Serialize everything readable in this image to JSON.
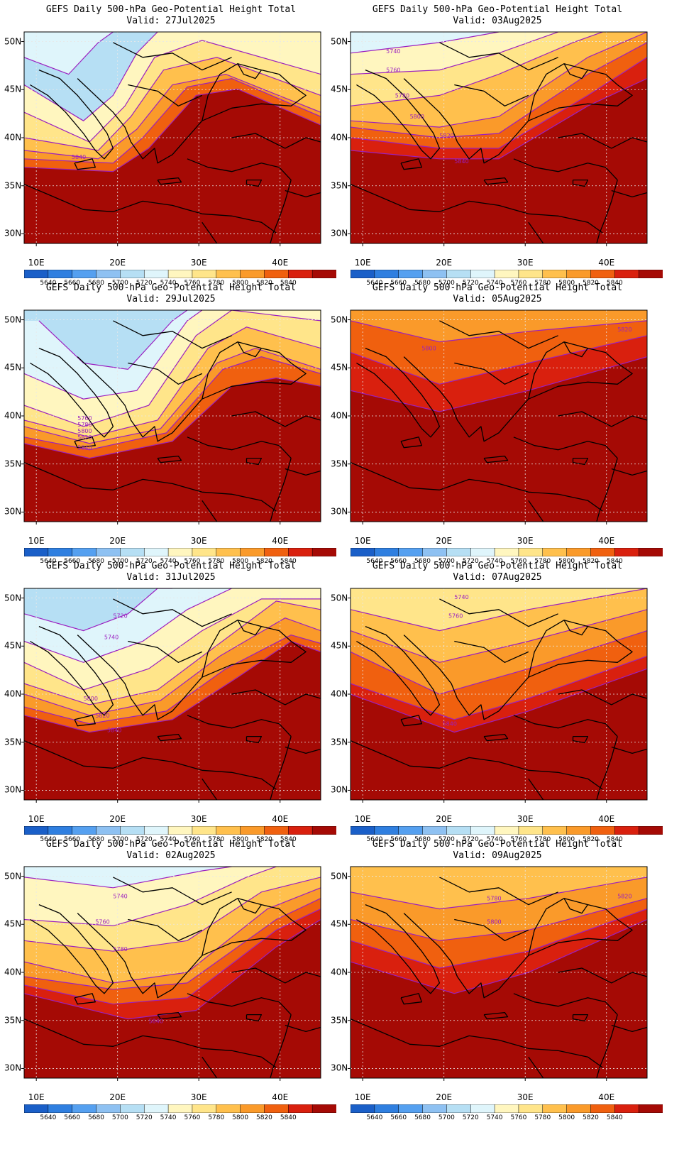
{
  "panels": [
    {
      "id": "p1",
      "title": "GEFS Daily 500-hPa Geo-Potential Height Total",
      "valid": "Valid: 27Jul2025",
      "contour_labels": [
        "5840"
      ]
    },
    {
      "id": "p2",
      "title": "GEFS Daily 500-hPa Geo-Potential Height Total",
      "valid": "Valid: 29Jul2025",
      "contour_labels": [
        "5760",
        "5780",
        "5800",
        "5820",
        "5840"
      ]
    },
    {
      "id": "p3",
      "title": "GEFS Daily 500-hPa Geo-Potential Height Total",
      "valid": "Valid: 31Jul2025",
      "contour_labels": [
        "5720",
        "5740",
        "5800",
        "5820",
        "5840"
      ]
    },
    {
      "id": "p4",
      "title": "GEFS Daily 500-hPa Geo-Potential Height Total",
      "valid": "Valid: 02Aug2025",
      "contour_labels": [
        "5740",
        "5760",
        "5780",
        "5840"
      ]
    },
    {
      "id": "p5",
      "title": "GEFS Daily 500-hPa Geo-Potential Height Total",
      "valid": "Valid: 03Aug2025",
      "contour_labels": [
        "5740",
        "5760",
        "5780",
        "5800",
        "5820",
        "5840"
      ]
    },
    {
      "id": "p6",
      "title": "GEFS Daily 500-hPa Geo-Potential Height Total",
      "valid": "Valid: 05Aug2025",
      "contour_labels": [
        "5800",
        "5820"
      ]
    },
    {
      "id": "p7",
      "title": "GEFS Daily 500-hPa Geo-Potential Height Total",
      "valid": "Valid: 07Aug2025",
      "contour_labels": [
        "5740",
        "5760",
        "5840"
      ]
    },
    {
      "id": "p8",
      "title": "GEFS Daily 500-hPa Geo-Potential Height Total",
      "valid": "Valid: 09Aug2025",
      "contour_labels": [
        "5780",
        "5800",
        "5820"
      ]
    }
  ],
  "lon_labels": [
    "10E",
    "20E",
    "30E",
    "40E"
  ],
  "lat_labels": [
    "50N",
    "45N",
    "40N",
    "35N",
    "30N"
  ],
  "colorbar": {
    "labels": [
      "5640",
      "5660",
      "5680",
      "5700",
      "5720",
      "5740",
      "5760",
      "5780",
      "5800",
      "5820",
      "5840"
    ],
    "colors": [
      "#1a5fc8",
      "#2f7fe0",
      "#55a0f0",
      "#8ec1f2",
      "#b6dff4",
      "#dff5fb",
      "#fff6bf",
      "#ffe58a",
      "#ffc04d",
      "#fa9a2a",
      "#f0600f",
      "#d9200e",
      "#a50a05"
    ]
  },
  "contour_color": "#9b1fc0",
  "map_colors": {
    "land_outline": "#000000",
    "grid": "#e8e8e8"
  }
}
